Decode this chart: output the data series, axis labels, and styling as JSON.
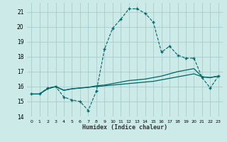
{
  "bg_color": "#cceae7",
  "grid_color": "#aacccc",
  "line_color": "#006666",
  "x_label": "Humidex (Indice chaleur)",
  "xlim": [
    -0.5,
    23.5
  ],
  "ylim": [
    14,
    21.6
  ],
  "yticks": [
    14,
    15,
    16,
    17,
    18,
    19,
    20,
    21
  ],
  "xticks": [
    0,
    1,
    2,
    3,
    4,
    5,
    6,
    7,
    8,
    9,
    10,
    11,
    12,
    13,
    14,
    15,
    16,
    17,
    18,
    19,
    20,
    21,
    22,
    23
  ],
  "xtick_labels": [
    "0",
    "1",
    "2",
    "3",
    "4",
    "5",
    "6",
    "7",
    "8",
    "9",
    "10",
    "11",
    "12",
    "13",
    "14",
    "15",
    "16",
    "17",
    "18",
    "19",
    "20",
    "21",
    "22",
    "23"
  ],
  "series": [
    {
      "x": [
        0,
        1,
        2,
        3,
        4,
        5,
        6,
        7,
        8,
        9,
        10,
        11,
        12,
        13,
        14,
        15,
        16,
        17,
        18,
        19,
        20,
        21,
        22,
        23
      ],
      "y": [
        15.5,
        15.5,
        15.9,
        16.0,
        15.3,
        15.1,
        15.0,
        14.4,
        15.7,
        18.5,
        19.9,
        20.5,
        21.2,
        21.2,
        20.9,
        20.3,
        18.3,
        18.7,
        18.1,
        17.9,
        17.9,
        16.6,
        15.9,
        16.7
      ],
      "style": "--",
      "marker": "+",
      "markersize": 3.5,
      "lw": 0.8
    },
    {
      "x": [
        0,
        1,
        2,
        3,
        4,
        5,
        6,
        7,
        8,
        9,
        10,
        11,
        12,
        13,
        14,
        15,
        16,
        17,
        18,
        19,
        20,
        21,
        22,
        23
      ],
      "y": [
        15.5,
        15.5,
        15.85,
        16.0,
        15.75,
        15.85,
        15.9,
        15.95,
        16.0,
        16.05,
        16.1,
        16.15,
        16.2,
        16.25,
        16.3,
        16.35,
        16.45,
        16.55,
        16.65,
        16.75,
        16.85,
        16.65,
        16.6,
        16.7
      ],
      "style": "-",
      "marker": null,
      "markersize": 0,
      "lw": 0.9
    },
    {
      "x": [
        0,
        1,
        2,
        3,
        4,
        5,
        6,
        7,
        8,
        9,
        10,
        11,
        12,
        13,
        14,
        15,
        16,
        17,
        18,
        19,
        20,
        21,
        22,
        23
      ],
      "y": [
        15.5,
        15.5,
        15.85,
        16.0,
        15.75,
        15.85,
        15.9,
        15.95,
        16.05,
        16.1,
        16.2,
        16.3,
        16.4,
        16.45,
        16.5,
        16.6,
        16.7,
        16.85,
        17.0,
        17.1,
        17.2,
        16.65,
        16.6,
        16.7
      ],
      "style": "-",
      "marker": null,
      "markersize": 0,
      "lw": 0.9
    }
  ]
}
